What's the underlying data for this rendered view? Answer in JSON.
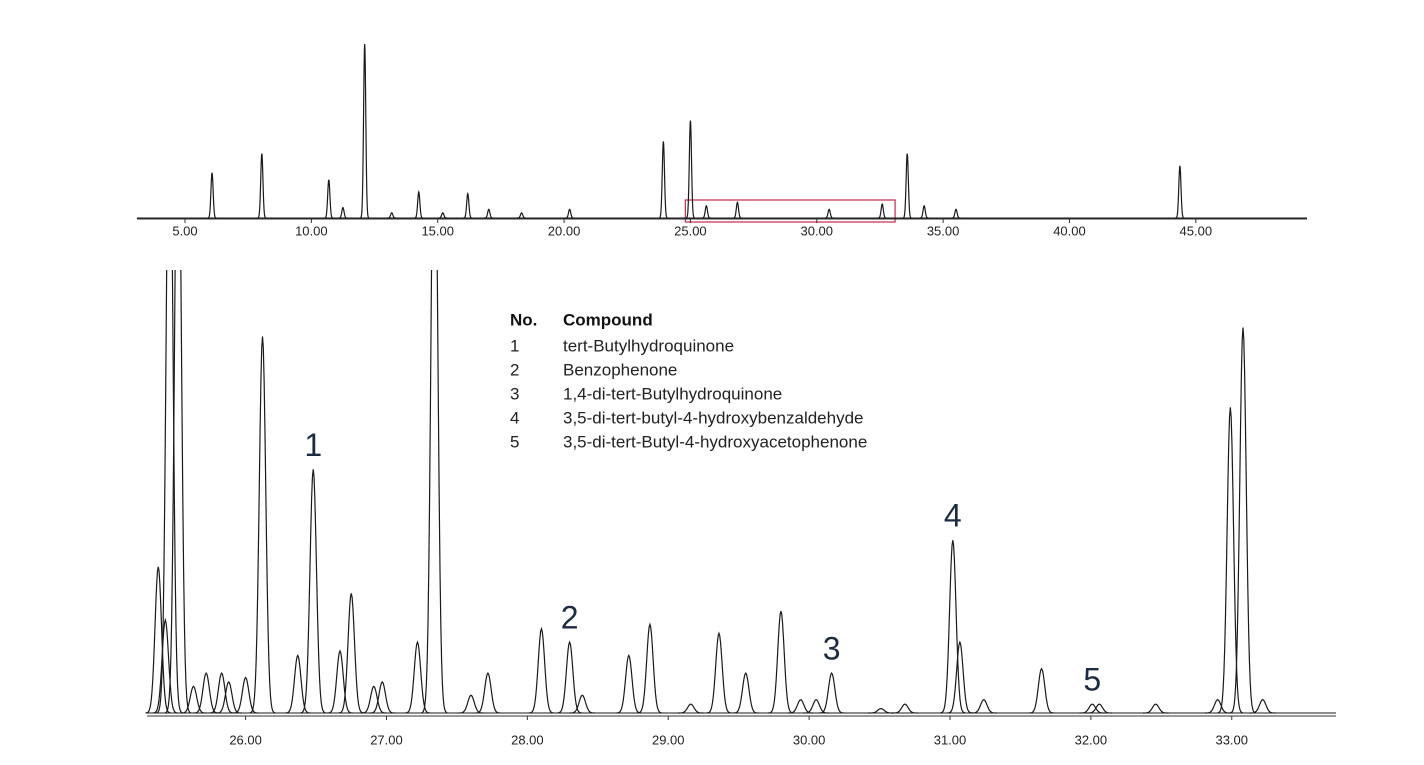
{
  "chart_data": [
    {
      "type": "chromatogram",
      "color": "#1a1a1a",
      "xlim": [
        3.1,
        49.4
      ],
      "xticks": [
        {
          "value": 5,
          "label": "5.00"
        },
        {
          "value": 10,
          "label": "10.00"
        },
        {
          "value": 15,
          "label": "15.00"
        },
        {
          "value": 20,
          "label": "20.00"
        },
        {
          "value": 25,
          "label": "25.00"
        },
        {
          "value": 30,
          "label": "30.00"
        },
        {
          "value": 35,
          "label": "35.00"
        },
        {
          "value": 40,
          "label": "40.00"
        },
        {
          "value": 45,
          "label": "45.00"
        }
      ],
      "ylim": [
        0,
        100
      ],
      "x": [
        6.07,
        8.04,
        10.69,
        11.25,
        12.11,
        13.18,
        14.25,
        15.2,
        16.19,
        17.02,
        18.32,
        20.22,
        23.93,
        25.0,
        25.63,
        26.86,
        30.49,
        32.59,
        33.58,
        34.25,
        35.51,
        44.37
      ],
      "values": [
        26,
        37,
        22,
        6,
        100,
        3,
        15,
        3,
        14,
        5,
        3,
        5,
        44,
        56,
        7,
        9,
        5,
        8,
        37,
        7,
        5,
        30
      ],
      "highlight": [
        24.8,
        33.1
      ],
      "highlight_color": "#c8385a"
    },
    {
      "type": "chromatogram",
      "color": "#1a1a1a",
      "xlim": [
        25.3,
        33.74
      ],
      "xticks": [
        {
          "value": 26,
          "label": "26.00"
        },
        {
          "value": 27,
          "label": "27.00"
        },
        {
          "value": 28,
          "label": "28.00"
        },
        {
          "value": 29,
          "label": "29.00"
        },
        {
          "value": 30,
          "label": "30.00"
        },
        {
          "value": 31,
          "label": "31.00"
        },
        {
          "value": 32,
          "label": "32.00"
        },
        {
          "value": 33,
          "label": "33.00"
        }
      ],
      "ylim": [
        0,
        100
      ],
      "x": [
        25.38,
        25.43,
        25.46,
        25.52,
        25.63,
        25.72,
        25.83,
        25.88,
        26.0,
        26.12,
        26.37,
        26.48,
        26.67,
        26.75,
        26.91,
        26.97,
        27.22,
        27.34,
        27.6,
        27.72,
        28.1,
        28.3,
        28.39,
        28.72,
        28.87,
        29.16,
        29.36,
        29.55,
        29.8,
        29.94,
        30.05,
        30.16,
        30.51,
        30.68,
        31.02,
        31.07,
        31.24,
        31.65,
        32.01,
        32.06,
        32.46,
        32.9,
        32.99,
        33.08,
        33.22
      ],
      "values": [
        33,
        21,
        150,
        150,
        6,
        9,
        9,
        7,
        8,
        85,
        13,
        55,
        14,
        27,
        6,
        7,
        16,
        150,
        4,
        9,
        19,
        16,
        4,
        13,
        20,
        2,
        18,
        9,
        23,
        3,
        3,
        9,
        1,
        2,
        39,
        16,
        3,
        10,
        2,
        2,
        2,
        3,
        69,
        87,
        3
      ],
      "annotations": [
        {
          "text": "1",
          "x": 26.48
        },
        {
          "text": "2",
          "x": 28.3
        },
        {
          "text": "3",
          "x": 30.16
        },
        {
          "text": "4",
          "x": 31.02
        },
        {
          "text": "5",
          "x": 32.01
        }
      ]
    }
  ],
  "table": {
    "columns": [
      "No.",
      "Compound"
    ],
    "rows": [
      [
        "1",
        "tert-Butylhydroquinone"
      ],
      [
        "2",
        "Benzophenone"
      ],
      [
        "3",
        "1,4-di-tert-Butylhydroquinone"
      ],
      [
        "4",
        "3,5-di-tert-butyl-4-hydroxybenzaldehyde"
      ],
      [
        "5",
        "3,5-di-tert-Butyl-4-hydroxyacetophenone"
      ]
    ]
  }
}
